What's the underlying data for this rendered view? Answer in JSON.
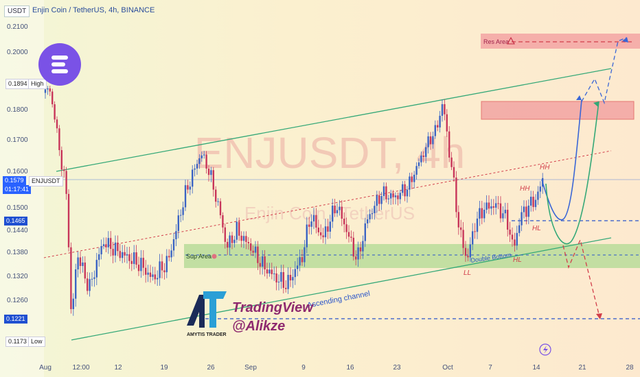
{
  "header": {
    "symbol": "USDT",
    "title": "Enjin Coin / TetherUS, 4h, BINANCE"
  },
  "yaxis": {
    "ticks": [
      "0.2100",
      "0.2000",
      "0.1800",
      "0.1700",
      "0.1600",
      "0.1500",
      "0.1440",
      "0.1380",
      "0.1320",
      "0.1260"
    ],
    "high_value": "0.1894",
    "high_label": "High",
    "current_value": "0.1579",
    "current_symbol": "ENJUSDT",
    "countdown": "01:17:41",
    "level_a": "0.1465",
    "level_b": "0.1221",
    "low_value": "0.1173",
    "low_label": "Low"
  },
  "xaxis": {
    "ticks": [
      "Aug",
      "12:00",
      "12",
      "19",
      "26",
      "Sep",
      "9",
      "16",
      "23",
      "Oct",
      "7",
      "14",
      "21",
      "28"
    ]
  },
  "watermark": {
    "main": "ENJUSDT, 4h",
    "sub": "Enjin Coin / TetherUS"
  },
  "annotations": {
    "res_area": "Res Area",
    "sup_area": "Sup Area",
    "channel": "Ascending channel",
    "double_bottom": "Double Bottom",
    "hh1": "HH",
    "hh2": "HH",
    "hl1": "HL",
    "hl2": "HL",
    "ll": "LL",
    "warning_icon": "warning-icon",
    "bell_icon": "bell-icon"
  },
  "branding": {
    "line1": "TradingView",
    "line2": "@Alikze",
    "logo_text": "AMYTIS TRADER"
  },
  "colors": {
    "up": "#3b64c4",
    "down": "#c8365a",
    "channel": "#33a877",
    "sup": "#b8dc9a",
    "res": "#f2a0a0"
  },
  "chart_data": {
    "type": "candlestick",
    "symbol": "ENJUSDT",
    "timeframe": "4h",
    "x_range": [
      "Aug",
      "28"
    ],
    "ylim": [
      0.115,
      0.215
    ],
    "key_points": [
      {
        "x": "Aug",
        "y": 0.1894,
        "label": "High"
      },
      {
        "x": "Aug",
        "y": 0.1173,
        "label": "Low"
      },
      {
        "x": "26",
        "y": 0.167
      },
      {
        "x": "Sep",
        "y": 0.139
      },
      {
        "x": "9",
        "y": 0.132
      },
      {
        "x": "23",
        "y": 0.161
      },
      {
        "x": "Oct",
        "y": 0.183
      },
      {
        "x": "Oct",
        "y": 0.136,
        "label": "LL"
      },
      {
        "x": "14",
        "y": 0.158,
        "label": "HH"
      }
    ],
    "levels": [
      0.1465,
      0.1221
    ],
    "current": 0.1579
  }
}
